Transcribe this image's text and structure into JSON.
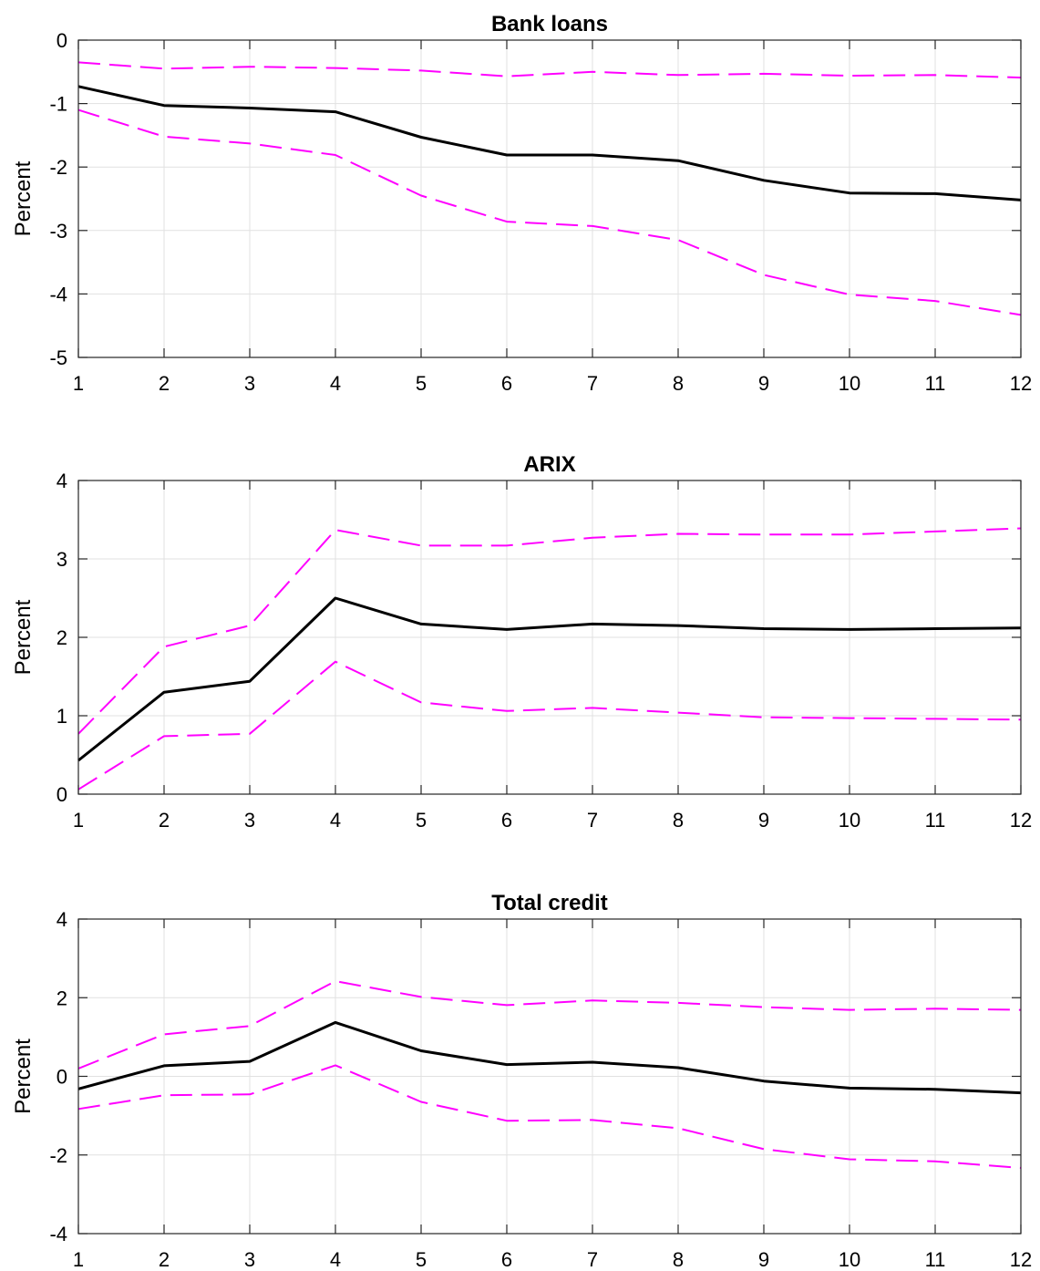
{
  "chart_data": [
    {
      "type": "line",
      "title": "Bank loans",
      "xlabel": "",
      "ylabel": "Percent",
      "x": [
        1,
        2,
        3,
        4,
        5,
        6,
        7,
        8,
        9,
        10,
        11,
        12
      ],
      "xlim": [
        1,
        12
      ],
      "ylim": [
        -5,
        0
      ],
      "yticks": [
        -5,
        -4,
        -3,
        -2,
        -1,
        0
      ],
      "grid": true,
      "series": [
        {
          "role": "upper-band",
          "color": "#ff00ff",
          "style": "dashed",
          "values": [
            -0.35,
            -0.45,
            -0.42,
            -0.44,
            -0.48,
            -0.57,
            -0.5,
            -0.55,
            -0.53,
            -0.56,
            -0.55,
            -0.59
          ]
        },
        {
          "role": "estimate",
          "color": "#000000",
          "style": "solid",
          "values": [
            -0.73,
            -1.03,
            -1.07,
            -1.13,
            -1.53,
            -1.81,
            -1.81,
            -1.9,
            -2.21,
            -2.41,
            -2.42,
            -2.52
          ]
        },
        {
          "role": "lower-band",
          "color": "#ff00ff",
          "style": "dashed",
          "values": [
            -1.1,
            -1.52,
            -1.63,
            -1.81,
            -2.45,
            -2.86,
            -2.93,
            -3.15,
            -3.7,
            -4.01,
            -4.11,
            -4.33
          ]
        }
      ]
    },
    {
      "type": "line",
      "title": "ARIX",
      "xlabel": "",
      "ylabel": "Percent",
      "x": [
        1,
        2,
        3,
        4,
        5,
        6,
        7,
        8,
        9,
        10,
        11,
        12
      ],
      "xlim": [
        1,
        12
      ],
      "ylim": [
        0,
        4
      ],
      "yticks": [
        0,
        1,
        2,
        3,
        4
      ],
      "grid": true,
      "series": [
        {
          "role": "upper-band",
          "color": "#ff00ff",
          "style": "dashed",
          "values": [
            0.77,
            1.88,
            2.15,
            3.37,
            3.17,
            3.17,
            3.27,
            3.32,
            3.31,
            3.31,
            3.35,
            3.39
          ]
        },
        {
          "role": "estimate",
          "color": "#000000",
          "style": "solid",
          "values": [
            0.43,
            1.3,
            1.44,
            2.5,
            2.17,
            2.1,
            2.17,
            2.15,
            2.11,
            2.1,
            2.11,
            2.12
          ]
        },
        {
          "role": "lower-band",
          "color": "#ff00ff",
          "style": "dashed",
          "values": [
            0.06,
            0.74,
            0.77,
            1.69,
            1.17,
            1.06,
            1.1,
            1.04,
            0.98,
            0.97,
            0.96,
            0.95
          ]
        }
      ]
    },
    {
      "type": "line",
      "title": "Total credit",
      "xlabel": "",
      "ylabel": "Percent",
      "x": [
        1,
        2,
        3,
        4,
        5,
        6,
        7,
        8,
        9,
        10,
        11,
        12
      ],
      "xlim": [
        1,
        12
      ],
      "ylim": [
        -4,
        4
      ],
      "yticks": [
        -4,
        -2,
        0,
        2,
        4
      ],
      "grid": true,
      "series": [
        {
          "role": "upper-band",
          "color": "#ff00ff",
          "style": "dashed",
          "values": [
            0.2,
            1.07,
            1.28,
            2.42,
            2.02,
            1.81,
            1.93,
            1.87,
            1.76,
            1.69,
            1.72,
            1.69
          ]
        },
        {
          "role": "estimate",
          "color": "#000000",
          "style": "solid",
          "values": [
            -0.32,
            0.27,
            0.38,
            1.37,
            0.65,
            0.3,
            0.36,
            0.22,
            -0.12,
            -0.3,
            -0.33,
            -0.42
          ]
        },
        {
          "role": "lower-band",
          "color": "#ff00ff",
          "style": "dashed",
          "values": [
            -0.83,
            -0.48,
            -0.46,
            0.28,
            -0.65,
            -1.13,
            -1.11,
            -1.32,
            -1.85,
            -2.11,
            -2.16,
            -2.33
          ]
        }
      ]
    }
  ]
}
